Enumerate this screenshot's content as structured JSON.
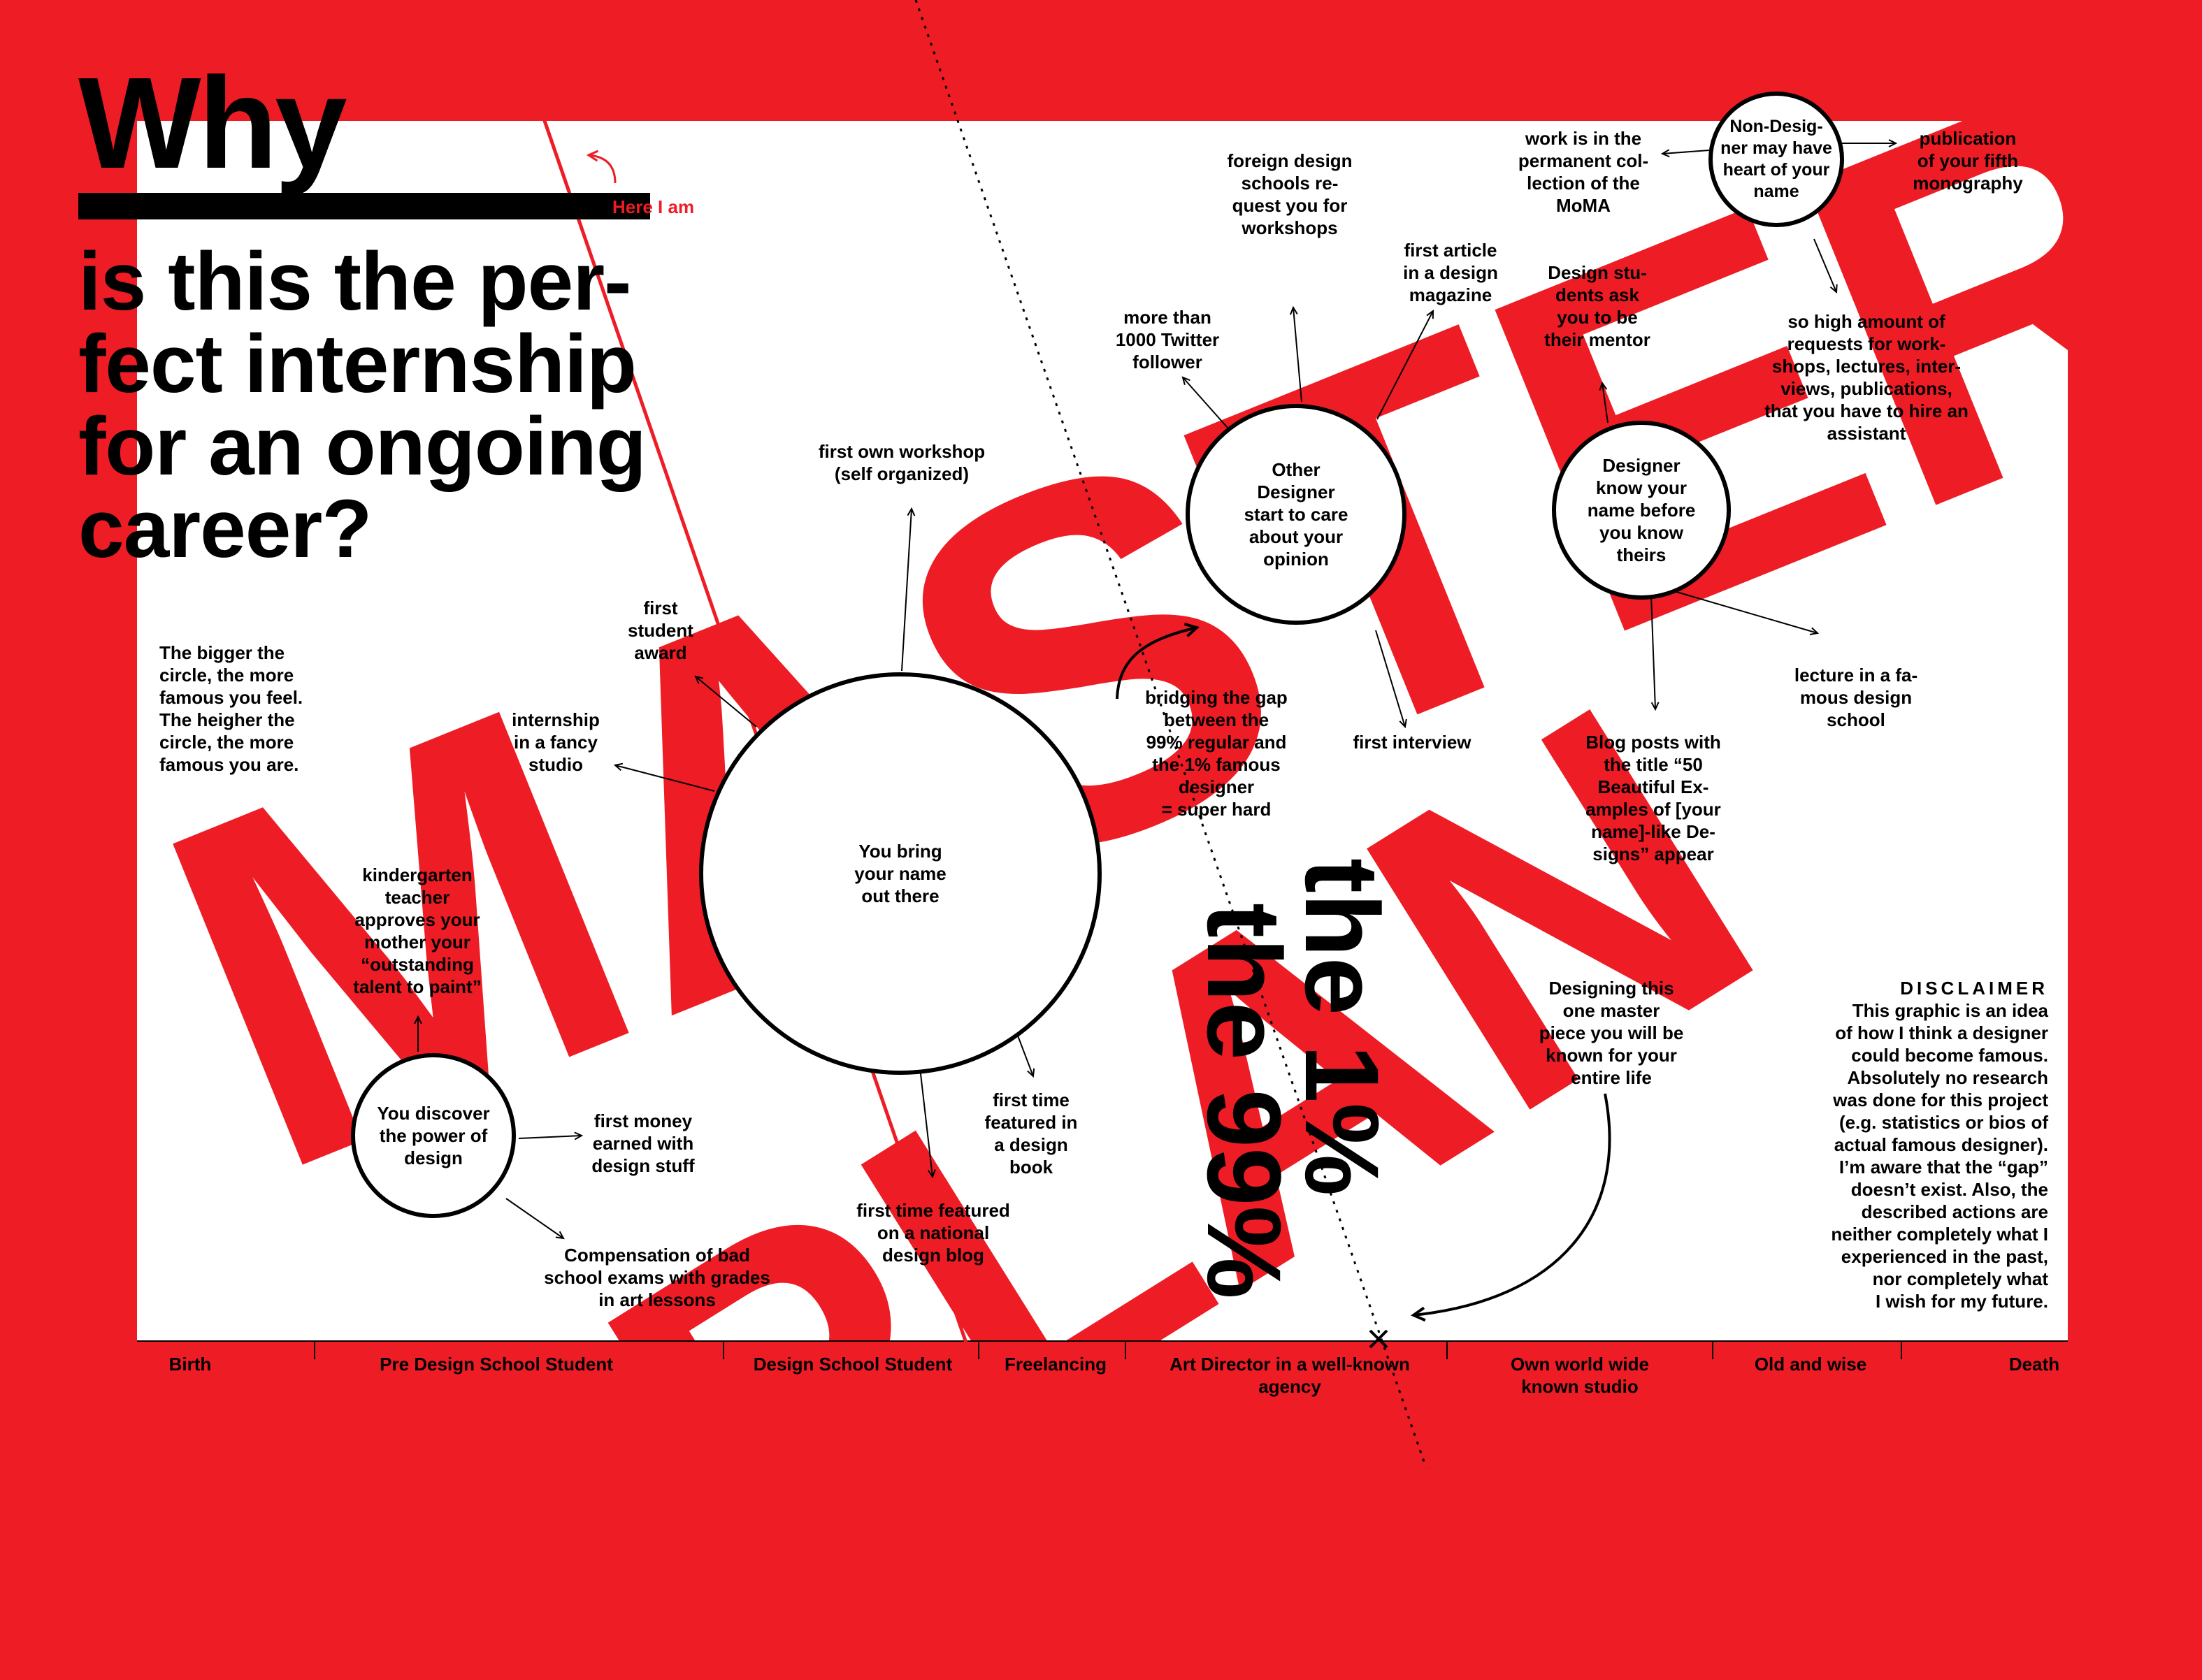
{
  "title": {
    "why": "Why",
    "question": "is this the per-\nfect internship\nfor an ongoing\ncareer?"
  },
  "big_words": {
    "master": "MASTER",
    "plan": "PLAN"
  },
  "here_i_am": "Here I am",
  "legend_note": "The bigger the\ncircle, the more\nfamous you feel.\nThe heigher the\ncircle, the more\nfamous you are.",
  "circles": {
    "discover": "You discover\nthe power of\ndesign",
    "bring_name": "You bring\nyour name\nout there",
    "other_designer": "Other\nDesigner\nstart to care\nabout your\nopinion",
    "know_name": "Designer\nknow your\nname before\nyou know\ntheirs",
    "non_designer": "Non-Desig-\nner may have\nheart of your\nname"
  },
  "labels": {
    "kindergarten": "kindergarten\nteacher\napproves your\nmother your\n“outstanding\ntalent to paint”",
    "first_money": "first money\nearned with\ndesign stuff",
    "compensation": "Compensation of bad\nschool exams with grades\nin art lessons",
    "first_award": "first\nstudent\naward",
    "internship": "internship\nin a fancy\nstudio",
    "first_workshop": "first own workshop\n(self organized)",
    "first_time_book": "first time\nfeatured in\na design\nbook",
    "first_blog": "first time featured\non a national\ndesign blog",
    "bridging": "bridging the gap\nbetween the\n99% regular and\nthe 1% famous\ndesigner\n= super hard",
    "twitter": "more than\n1000 Twitter\nfollower",
    "foreign": "foreign design\nschools re-\nquest you for\nworkshops",
    "first_article": "first article\nin a design\nmagazine",
    "first_interview": "first interview",
    "students_mentor": "Design stu-\ndents ask\nyou to be\ntheir mentor",
    "moma": "work is in the\npermanent col-\nlection of the\nMoMA",
    "fifth_mono": "publication\nof your fifth\nmonography",
    "requests": "so high amount of\nrequests for work-\nshops, lectures, inter-\nviews, publications,\nthat you have to hire an\nassistant",
    "lecture": "lecture in a fa-\nmous design\nschool",
    "blog_posts": "Blog posts with\nthe title “50\nBeautiful Ex-\namples of [your\nname]-like De-\nsigns” appear",
    "masterpiece": "Designing this\none master\npiece you will be\nknown for your\nentire life"
  },
  "percent": {
    "one": "the 1%",
    "ninetynine": "the 99%"
  },
  "disclaimer": {
    "heading": "DISCLAIMER",
    "body": "This graphic is an idea\nof how I think a designer\ncould become famous.\nAbsolutely no research\nwas done for this project\n(e.g. statistics or bios of\nactual famous designer).\nI’m aware that the “gap”\ndoesn’t exist. Also, the\ndescribed actions are\nneither completely what I\nexperienced in the past,\nnor completely what\nI wish for my future."
  },
  "timeline": {
    "birth": "Birth",
    "pre_school": "Pre Design School Student",
    "school": "Design School Student",
    "freelancing": "Freelancing",
    "art_director": "Art Director in a well-known\nagency",
    "own_studio": "Own world wide\nknown studio",
    "old_wise": "Old and wise",
    "death": "Death"
  },
  "colors": {
    "accent": "#ee1c25",
    "ink": "#000000",
    "paper": "#ffffff"
  }
}
